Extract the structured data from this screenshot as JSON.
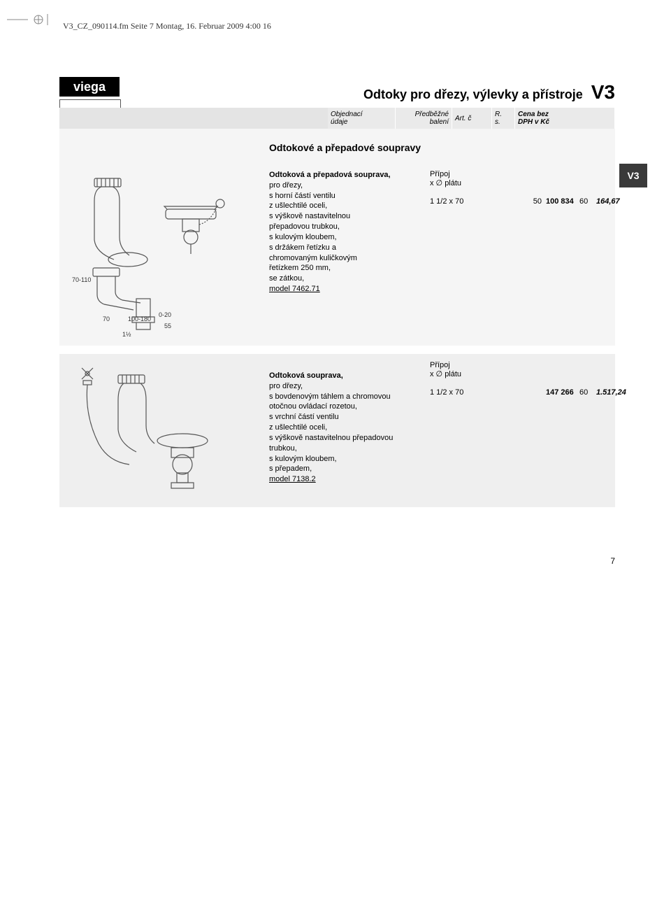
{
  "print_info": "V3_CZ_090114.fm  Seite 7  Montag, 16. Februar 2009  4:00 16",
  "logo": "viega",
  "page_title": "Odtoky pro dřezy, výlevky a přístroje",
  "page_code": "V3",
  "side_tab": "V3",
  "header": {
    "c1a": "Objednací",
    "c1b": "údaje",
    "c2a": "Předběžné",
    "c2b": "balení",
    "c3a": "Art. č",
    "c3b": "",
    "c4a": "R.",
    "c4b": "s.",
    "c5a": "Cena bez",
    "c5b": "DPH v Kč"
  },
  "section_title": "Odtokové a přepadové soupravy",
  "data_head_label": "Přípoj\nx ∅ plátu",
  "product1": {
    "title": "Odtoková a přepadová souprava,",
    "lines": [
      "pro dřezy,",
      "s horní částí ventilu",
      "z ušlechtilé oceli,",
      "s výškově nastavitelnou",
      "přepadovou trubkou,",
      "s kulovým kloubem,",
      "s držákem řetízku a",
      "chromovaným kuličkovým",
      "řetízkem 250 mm,",
      "se zátkou,"
    ],
    "model": "model 7462.71",
    "row": {
      "c1": "1 1/2 x 70",
      "c2": "50",
      "c3": "100 834",
      "c4": "60",
      "c5": "164,67"
    },
    "dims": {
      "a": "70-110",
      "b": "70",
      "c": "100-180",
      "d": "0-20",
      "e": "55",
      "f": "1½"
    }
  },
  "product2": {
    "title": "Odtoková souprava,",
    "lines": [
      "pro dřezy,",
      "s bovdenovým táhlem a chromovou",
      "otočnou ovládací rozetou,",
      "s vrchní částí ventilu",
      "z ušlechtilé oceli,",
      "s výškově nastavitelnou přepadovou",
      "trubkou,",
      "s kulovým kloubem,",
      "s přepadem,"
    ],
    "model": "model 7138.2",
    "row": {
      "c1": "1 1/2 x 70",
      "c2": "",
      "c3": "147 266",
      "c4": "60",
      "c5": "1.517,24"
    }
  },
  "page_number": "7",
  "colors": {
    "bar": "#eaeaea",
    "tab": "#3a3a3a",
    "block": "#f5f5f5"
  }
}
